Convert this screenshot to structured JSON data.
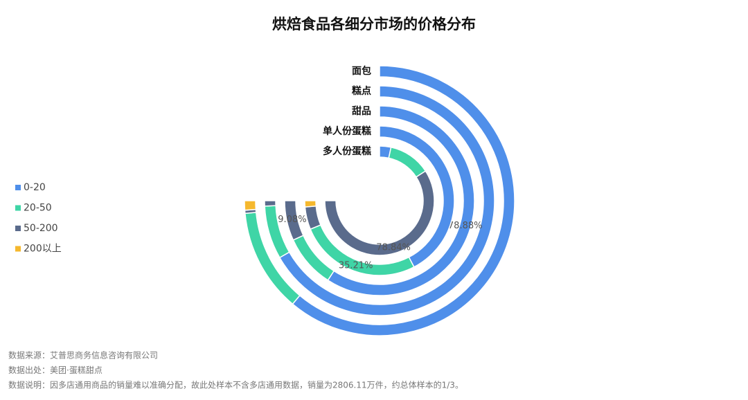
{
  "chart_data": {
    "type": "radial_bar",
    "title": "烘焙食品各细分市场的价格分布",
    "categories": [
      "面包",
      "糕点",
      "甜品",
      "单人份蛋糕",
      "多人份蛋糕"
    ],
    "series": [
      {
        "name": "0-20",
        "color": "#4f8fea",
        "values": [
          81.5,
          89,
          78.88,
          56.5,
          4.5
        ],
        "value_labels": [
          null,
          null,
          "78.88%",
          null,
          null
        ]
      },
      {
        "name": "20-50",
        "color": "#3fd5a6",
        "values": [
          16.5,
          10,
          12.04,
          35.21,
          16.66
        ],
        "value_labels": [
          null,
          null,
          null,
          "35.21%",
          null
        ]
      },
      {
        "name": "50-200",
        "color": "#5a6b8c",
        "values": [
          0.5,
          1,
          9.08,
          6.5,
          78.84
        ],
        "value_labels": [
          null,
          null,
          "9.08%",
          null,
          "78.84%"
        ]
      },
      {
        "name": "200以上",
        "color": "#f5b82e",
        "values": [
          1.5,
          0,
          0,
          1.79,
          0
        ],
        "value_labels": [
          null,
          null,
          null,
          null,
          null
        ]
      }
    ],
    "legend": "left",
    "notes": [
      "数据来源：艾普思商务信息咨询有限公司",
      "数据出处：美团·蛋糕甜点",
      "数据说明：因多店通用商品的销量难以准确分配，故此处样本不含多店通用数据，销量为2806.11万件，约总体样本的1/3。"
    ]
  }
}
